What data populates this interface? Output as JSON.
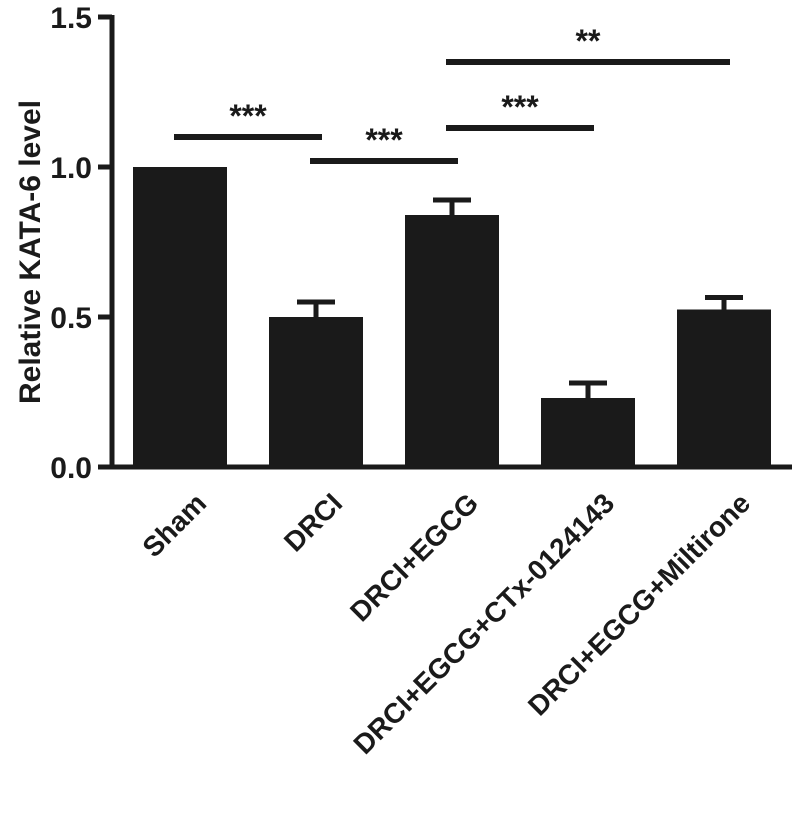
{
  "chart_data": {
    "type": "bar",
    "title": "",
    "xlabel": "",
    "ylabel": "Relative KATA-6 level",
    "categories": [
      "Sham",
      "DRCI",
      "DRCI+EGCG",
      "DRCI+EGCG+CTx-0124143",
      "DRCI+EGCG+Miltirone"
    ],
    "values": [
      1.0,
      0.5,
      0.84,
      0.23,
      0.525
    ],
    "error_bars": [
      0,
      0.05,
      0.05,
      0.05,
      0.04
    ],
    "ylim": [
      0,
      1.5
    ],
    "yticks": [
      0.0,
      0.5,
      1.0,
      1.5
    ],
    "ytick_labels": [
      "0.0",
      "0.5",
      "1.0",
      "1.5"
    ],
    "grid": false,
    "bar_color": "#1a1a1a",
    "significance": [
      {
        "from": 0,
        "to": 1,
        "label": "***",
        "y": 1.1
      },
      {
        "from": 1,
        "to": 2,
        "label": "***",
        "y": 1.02
      },
      {
        "from": 2,
        "to": 3,
        "label": "***",
        "y": 1.13
      },
      {
        "from": 2,
        "to": 4,
        "label": "**",
        "y": 1.35
      }
    ]
  }
}
